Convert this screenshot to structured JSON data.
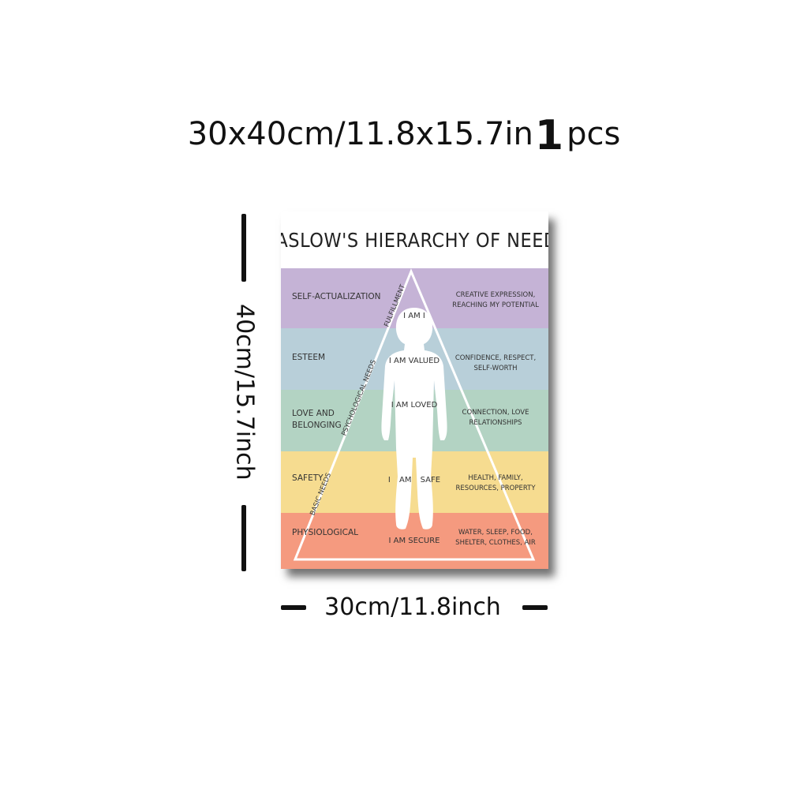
{
  "headline": {
    "size": "30x40cm/11.8x15.7in",
    "qty": "1",
    "unit": "pcs"
  },
  "dimensions": {
    "height": "40cm/15.7inch",
    "width": "30cm/11.8inch"
  },
  "poster": {
    "title": "MASLOW'S HIERARCHY OF NEEDS",
    "levels": [
      {
        "name": "SELF-ACTUALIZATION",
        "description": "CREATIVE EXPRESSION, REACHING MY POTENTIAL",
        "statement": "I AM I",
        "color": "#c5b3d6"
      },
      {
        "name": "ESTEEM",
        "description": "CONFIDENCE, RESPECT, SELF-WORTH",
        "statement": "I AM VALUED",
        "color": "#b8cfd9"
      },
      {
        "name": "LOVE AND BELONGING",
        "description": "CONNECTION, LOVE RELATIONSHIPS",
        "statement": "I AM LOVED",
        "color": "#b3d3c3"
      },
      {
        "name": "SAFETY",
        "description": "HEALTH, FAMILY, RESOURCES, PROPERTY",
        "statement": "I AM SAFE",
        "color": "#f6dc90"
      },
      {
        "name": "PHYSIOLOGICAL",
        "description": "WATER, SLEEP, FOOD, SHELTER, CLOTHES, AIR",
        "statement": "I AM SECURE",
        "color": "#f59a7f"
      }
    ],
    "side_labels": {
      "top": "FULFILLMENT",
      "middle": "PSYCHOLOGICAL NEEDS",
      "bottom": "BASIC NEEDS"
    }
  }
}
